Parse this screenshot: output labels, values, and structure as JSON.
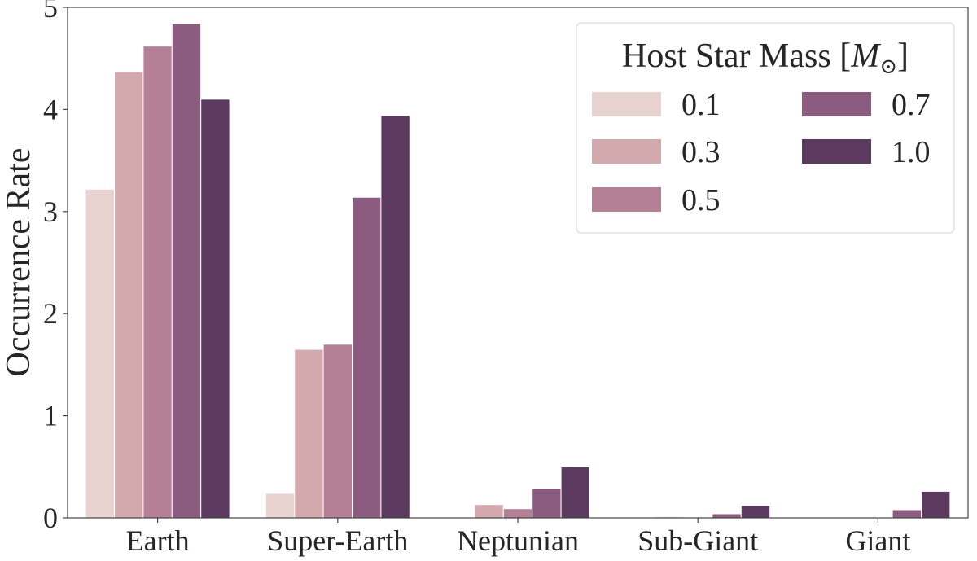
{
  "chart_data": {
    "type": "bar",
    "xlabel": "",
    "ylabel": "Occurrence Rate",
    "ylim": [
      0,
      5
    ],
    "yticks": [
      0,
      1,
      2,
      3,
      4,
      5
    ],
    "grid": false,
    "categories": [
      "Earth",
      "Super-Earth",
      "Neptunian",
      "Sub-Giant",
      "Giant"
    ],
    "legend": {
      "title": "Host Star Mass [M⊙]",
      "title_prefix": "Host Star Mass [",
      "title_symbol": "M",
      "title_subscript": "⊙",
      "title_suffix": "]",
      "placement": "top-right",
      "columns": 2
    },
    "series": [
      {
        "name": "0.1",
        "color": "#e8d3d1",
        "values": [
          3.22,
          0.24,
          0.0,
          0.0,
          0.0
        ]
      },
      {
        "name": "0.3",
        "color": "#d4a9ad",
        "values": [
          4.37,
          1.65,
          0.13,
          0.01,
          0.0
        ]
      },
      {
        "name": "0.5",
        "color": "#b58096",
        "values": [
          4.62,
          1.7,
          0.09,
          0.0,
          0.0
        ]
      },
      {
        "name": "0.7",
        "color": "#8b5c80",
        "values": [
          4.84,
          3.14,
          0.29,
          0.04,
          0.08
        ]
      },
      {
        "name": "1.0",
        "color": "#5c3a60",
        "values": [
          4.1,
          3.94,
          0.5,
          0.12,
          0.26
        ]
      }
    ]
  }
}
